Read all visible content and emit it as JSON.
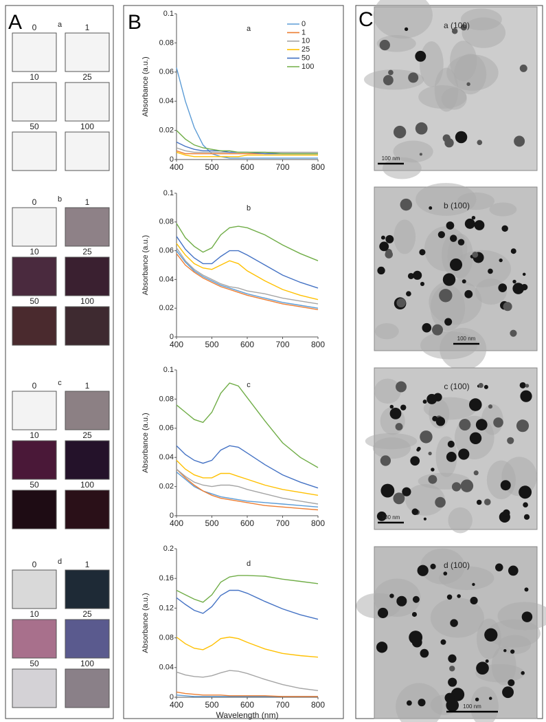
{
  "panel_labels": [
    "A",
    "B",
    "C"
  ],
  "panel_a": {
    "groups": [
      {
        "label": "a",
        "samples": [
          {
            "label": "0",
            "color": "#f4f4f4"
          },
          {
            "label": "1",
            "color": "#f4f4f4"
          },
          {
            "label": "10",
            "color": "#f4f4f4"
          },
          {
            "label": "25",
            "color": "#f4f4f4"
          },
          {
            "label": "50",
            "color": "#f4f4f4"
          },
          {
            "label": "100",
            "color": "#f4f4f4"
          }
        ]
      },
      {
        "label": "b",
        "samples": [
          {
            "label": "0",
            "color": "#f3f3f3"
          },
          {
            "label": "1",
            "color": "#8e8187"
          },
          {
            "label": "10",
            "color": "#4a2a3e"
          },
          {
            "label": "25",
            "color": "#3a2030"
          },
          {
            "label": "50",
            "color": "#4a2a2e"
          },
          {
            "label": "100",
            "color": "#3e2a30"
          }
        ]
      },
      {
        "label": "c",
        "samples": [
          {
            "label": "0",
            "color": "#f3f3f3"
          },
          {
            "label": "1",
            "color": "#8c8084"
          },
          {
            "label": "10",
            "color": "#4a1838"
          },
          {
            "label": "25",
            "color": "#24122a"
          },
          {
            "label": "50",
            "color": "#1e0c14"
          },
          {
            "label": "100",
            "color": "#2a1018"
          }
        ]
      },
      {
        "label": "d",
        "samples": [
          {
            "label": "0",
            "color": "#d9d9d9"
          },
          {
            "label": "1",
            "color": "#1e2a36"
          },
          {
            "label": "10",
            "color": "#a8708c"
          },
          {
            "label": "25",
            "color": "#5a5a8e"
          },
          {
            "label": "50",
            "color": "#d4d2d6"
          },
          {
            "label": "100",
            "color": "#8a8088"
          }
        ]
      }
    ]
  },
  "panel_c": {
    "images": [
      {
        "label": "a (100)",
        "scale_bar": "100 nm"
      },
      {
        "label": "b (100)",
        "scale_bar": "100 nm"
      },
      {
        "label": "c (100)",
        "scale_bar": "100 nm"
      },
      {
        "label": "d (100)",
        "scale_bar": "100 nm"
      }
    ]
  },
  "chart_data": [
    {
      "type": "line",
      "title": "a",
      "ylabel": "Absorbance (a.u.)",
      "legend": "upper right",
      "x": [
        400,
        425,
        450,
        475,
        500,
        525,
        550,
        575,
        600,
        650,
        700,
        750,
        800
      ],
      "xlim": [
        400,
        800
      ],
      "xticks": [
        400,
        500,
        600,
        700,
        800
      ],
      "ylim": [
        0,
        0.1
      ],
      "yticks": [
        0,
        0.02,
        0.04,
        0.06,
        0.08,
        0.1
      ],
      "series": [
        {
          "name": "0",
          "color": "#5b9bd5",
          "values": [
            0.063,
            0.04,
            0.022,
            0.01,
            0.004,
            0.002,
            0.001,
            0.001,
            0.001,
            0.001,
            0.001,
            0.001,
            0.001
          ]
        },
        {
          "name": "1",
          "color": "#ed7d31",
          "values": [
            0.006,
            0.004,
            0.004,
            0.004,
            0.004,
            0.004,
            0.004,
            0.004,
            0.004,
            0.004,
            0.004,
            0.004,
            0.004
          ]
        },
        {
          "name": "10",
          "color": "#a5a5a5",
          "values": [
            0.008,
            0.006,
            0.005,
            0.005,
            0.005,
            0.005,
            0.005,
            0.005,
            0.005,
            0.005,
            0.005,
            0.005,
            0.005
          ]
        },
        {
          "name": "25",
          "color": "#ffc000",
          "values": [
            0.005,
            0.003,
            0.002,
            0.002,
            0.002,
            0.002,
            0.002,
            0.002,
            0.003,
            0.003,
            0.003,
            0.003,
            0.003
          ]
        },
        {
          "name": "50",
          "color": "#4472c4",
          "values": [
            0.012,
            0.009,
            0.007,
            0.006,
            0.006,
            0.006,
            0.005,
            0.005,
            0.005,
            0.004,
            0.004,
            0.004,
            0.004
          ]
        },
        {
          "name": "100",
          "color": "#70ad47",
          "values": [
            0.02,
            0.014,
            0.01,
            0.008,
            0.007,
            0.006,
            0.006,
            0.005,
            0.005,
            0.005,
            0.004,
            0.004,
            0.004
          ]
        }
      ]
    },
    {
      "type": "line",
      "title": "b",
      "ylabel": "Absorbance (a.u.)",
      "x": [
        400,
        425,
        450,
        475,
        500,
        525,
        550,
        575,
        600,
        650,
        700,
        750,
        800
      ],
      "xlim": [
        400,
        800
      ],
      "xticks": [
        400,
        500,
        600,
        700,
        800
      ],
      "ylim": [
        0,
        0.1
      ],
      "yticks": [
        0,
        0.02,
        0.04,
        0.06,
        0.08,
        0.1
      ],
      "series": [
        {
          "name": "0",
          "color": "#5b9bd5",
          "values": [
            0.06,
            0.052,
            0.046,
            0.042,
            0.039,
            0.036,
            0.034,
            0.032,
            0.03,
            0.027,
            0.024,
            0.022,
            0.02
          ]
        },
        {
          "name": "1",
          "color": "#ed7d31",
          "values": [
            0.058,
            0.05,
            0.045,
            0.041,
            0.038,
            0.035,
            0.033,
            0.031,
            0.029,
            0.026,
            0.023,
            0.021,
            0.019
          ]
        },
        {
          "name": "10",
          "color": "#a5a5a5",
          "values": [
            0.062,
            0.053,
            0.047,
            0.043,
            0.04,
            0.037,
            0.035,
            0.034,
            0.032,
            0.03,
            0.027,
            0.025,
            0.023
          ]
        },
        {
          "name": "25",
          "color": "#ffc000",
          "values": [
            0.065,
            0.057,
            0.051,
            0.048,
            0.047,
            0.05,
            0.053,
            0.051,
            0.046,
            0.039,
            0.033,
            0.029,
            0.026
          ]
        },
        {
          "name": "50",
          "color": "#4472c4",
          "values": [
            0.07,
            0.061,
            0.055,
            0.051,
            0.051,
            0.056,
            0.06,
            0.06,
            0.057,
            0.05,
            0.043,
            0.038,
            0.034
          ]
        },
        {
          "name": "100",
          "color": "#70ad47",
          "values": [
            0.079,
            0.069,
            0.063,
            0.059,
            0.062,
            0.071,
            0.076,
            0.077,
            0.076,
            0.071,
            0.064,
            0.058,
            0.053
          ]
        }
      ]
    },
    {
      "type": "line",
      "title": "c",
      "ylabel": "Absorbance (a.u.)",
      "x": [
        400,
        425,
        450,
        475,
        500,
        525,
        550,
        575,
        600,
        650,
        700,
        750,
        800
      ],
      "xlim": [
        400,
        800
      ],
      "xticks": [
        400,
        500,
        600,
        700,
        800
      ],
      "ylim": [
        0,
        0.1
      ],
      "yticks": [
        0,
        0.02,
        0.04,
        0.06,
        0.08,
        0.1
      ],
      "series": [
        {
          "name": "0",
          "color": "#5b9bd5",
          "values": [
            0.03,
            0.025,
            0.02,
            0.017,
            0.015,
            0.013,
            0.012,
            0.011,
            0.01,
            0.009,
            0.008,
            0.007,
            0.006
          ]
        },
        {
          "name": "1",
          "color": "#ed7d31",
          "values": [
            0.032,
            0.026,
            0.021,
            0.017,
            0.014,
            0.012,
            0.011,
            0.01,
            0.009,
            0.007,
            0.006,
            0.005,
            0.004
          ]
        },
        {
          "name": "10",
          "color": "#a5a5a5",
          "values": [
            0.032,
            0.027,
            0.023,
            0.021,
            0.02,
            0.021,
            0.021,
            0.02,
            0.018,
            0.015,
            0.012,
            0.01,
            0.008
          ]
        },
        {
          "name": "25",
          "color": "#ffc000",
          "values": [
            0.038,
            0.032,
            0.028,
            0.026,
            0.026,
            0.029,
            0.029,
            0.027,
            0.025,
            0.021,
            0.018,
            0.016,
            0.014
          ]
        },
        {
          "name": "50",
          "color": "#4472c4",
          "values": [
            0.048,
            0.042,
            0.038,
            0.036,
            0.038,
            0.045,
            0.048,
            0.047,
            0.043,
            0.035,
            0.028,
            0.023,
            0.019
          ]
        },
        {
          "name": "100",
          "color": "#70ad47",
          "values": [
            0.076,
            0.071,
            0.066,
            0.064,
            0.071,
            0.084,
            0.091,
            0.089,
            0.081,
            0.065,
            0.05,
            0.04,
            0.033
          ]
        }
      ]
    },
    {
      "type": "line",
      "title": "d",
      "ylabel": "Absorbance (a.u.)",
      "xlabel": "Wavelength (nm)",
      "x": [
        400,
        425,
        450,
        475,
        500,
        525,
        550,
        575,
        600,
        650,
        700,
        750,
        800
      ],
      "xlim": [
        400,
        800
      ],
      "xticks": [
        400,
        500,
        600,
        700,
        800
      ],
      "ylim": [
        0,
        0.2
      ],
      "yticks": [
        0,
        0.04,
        0.08,
        0.12,
        0.16,
        0.2
      ],
      "series": [
        {
          "name": "0",
          "color": "#5b9bd5",
          "values": [
            0.003,
            0.002,
            0.001,
            0.001,
            0.001,
            0.001,
            0.001,
            0.001,
            0.001,
            0.001,
            0.001,
            0.001,
            0.001
          ]
        },
        {
          "name": "1",
          "color": "#ed7d31",
          "values": [
            0.007,
            0.005,
            0.004,
            0.003,
            0.003,
            0.003,
            0.002,
            0.002,
            0.002,
            0.002,
            0.001,
            0.001,
            0.001
          ]
        },
        {
          "name": "10",
          "color": "#a5a5a5",
          "values": [
            0.034,
            0.03,
            0.028,
            0.027,
            0.029,
            0.033,
            0.036,
            0.035,
            0.032,
            0.024,
            0.017,
            0.012,
            0.009
          ]
        },
        {
          "name": "25",
          "color": "#ffc000",
          "values": [
            0.081,
            0.072,
            0.066,
            0.064,
            0.07,
            0.079,
            0.081,
            0.079,
            0.074,
            0.065,
            0.059,
            0.056,
            0.054
          ]
        },
        {
          "name": "50",
          "color": "#4472c4",
          "values": [
            0.134,
            0.125,
            0.117,
            0.113,
            0.122,
            0.137,
            0.144,
            0.144,
            0.14,
            0.129,
            0.119,
            0.111,
            0.105
          ]
        },
        {
          "name": "100",
          "color": "#70ad47",
          "values": [
            0.144,
            0.138,
            0.132,
            0.128,
            0.138,
            0.155,
            0.162,
            0.164,
            0.164,
            0.163,
            0.159,
            0.156,
            0.153
          ]
        }
      ]
    }
  ]
}
